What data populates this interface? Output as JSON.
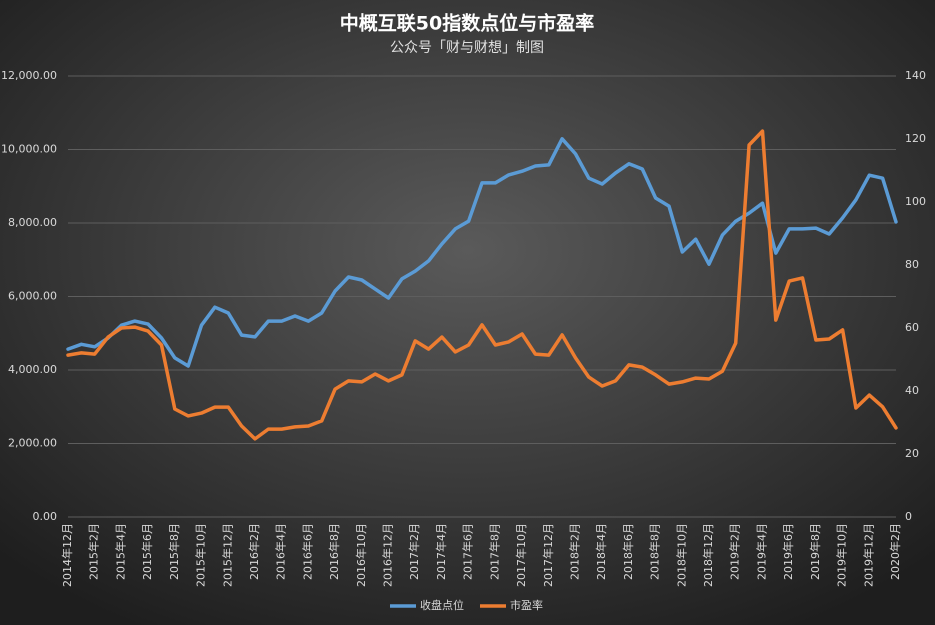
{
  "chart_data": {
    "type": "line",
    "title": "中概互联50指数点位与市盈率",
    "subtitle": "公众号「财与财想」制图",
    "categories": [
      "2014年12月",
      null,
      "2015年2月",
      null,
      "2015年4月",
      null,
      "2015年6月",
      null,
      "2015年8月",
      null,
      "2015年10月",
      null,
      "2015年12月",
      null,
      "2016年2月",
      null,
      "2016年4月",
      null,
      "2016年6月",
      null,
      "2016年8月",
      null,
      "2016年10月",
      null,
      "2016年12月",
      null,
      "2017年2月",
      null,
      "2017年4月",
      null,
      "2017年6月",
      null,
      "2017年8月",
      null,
      "2017年10月",
      null,
      "2017年12月",
      null,
      "2018年2月",
      null,
      "2018年4月",
      null,
      "2018年6月",
      null,
      "2018年8月",
      null,
      "2018年10月",
      null,
      "2018年12月",
      null,
      "2019年2月",
      null,
      "2019年4月",
      null,
      "2019年6月",
      null,
      "2019年8月",
      null,
      "2019年10月",
      null,
      "2019年12月",
      null,
      "2020年2月"
    ],
    "series": [
      {
        "name": "收盘点位",
        "color": "#5b9bd5",
        "axis": "y",
        "values": [
          4570,
          4700,
          4630,
          4870,
          5220,
          5330,
          5250,
          4870,
          4330,
          4110,
          5220,
          5710,
          5550,
          4950,
          4900,
          5330,
          5330,
          5470,
          5330,
          5550,
          6150,
          6530,
          6450,
          6200,
          5960,
          6480,
          6690,
          6970,
          7430,
          7840,
          8050,
          9090,
          9090,
          9310,
          9410,
          9550,
          9580,
          10290,
          9880,
          9220,
          9060,
          9360,
          9610,
          9470,
          8680,
          8460,
          7210,
          7560,
          6880,
          7670,
          8050,
          8270,
          8540,
          7180,
          7840,
          7840,
          7860,
          7700,
          8140,
          8630,
          9300,
          9220,
          8030
        ]
      },
      {
        "name": "市盈率",
        "color": "#ed7d31",
        "axis": "y2",
        "values": [
          51.4,
          52.1,
          51.7,
          57.1,
          60,
          60.3,
          59,
          54.6,
          34.3,
          32.1,
          33,
          34.9,
          34.9,
          28.9,
          24.8,
          27.9,
          27.9,
          28.6,
          28.9,
          30.5,
          40.6,
          43.2,
          42.9,
          45.4,
          43.2,
          45.1,
          55.9,
          53.3,
          57.1,
          52.4,
          54.6,
          61,
          54.6,
          55.6,
          58.1,
          51.7,
          51.4,
          57.8,
          50.5,
          44.4,
          41.6,
          43.2,
          48.3,
          47.6,
          45.1,
          42.2,
          42.9,
          44.1,
          43.8,
          46.3,
          55.2,
          118.1,
          122.5,
          62.5,
          74.9,
          75.9,
          56.2,
          56.5,
          59.4,
          34.6,
          38.7,
          35,
          28.3
        ]
      }
    ],
    "ylim": [
      0,
      12000
    ],
    "yticks": [
      {
        "value": 0,
        "label": "0.00"
      },
      {
        "value": 2000,
        "label": "2,000.00"
      },
      {
        "value": 4000,
        "label": "4,000.00"
      },
      {
        "value": 6000,
        "label": "6,000.00"
      },
      {
        "value": 8000,
        "label": "8,000.00"
      },
      {
        "value": 10000,
        "label": "10,000.00"
      },
      {
        "value": 12000,
        "label": "12,000.00"
      }
    ],
    "y2lim": [
      0,
      140
    ],
    "y2ticks": [
      0,
      20,
      40,
      60,
      80,
      100,
      120,
      140
    ],
    "grid": true,
    "legend": "bottom"
  }
}
